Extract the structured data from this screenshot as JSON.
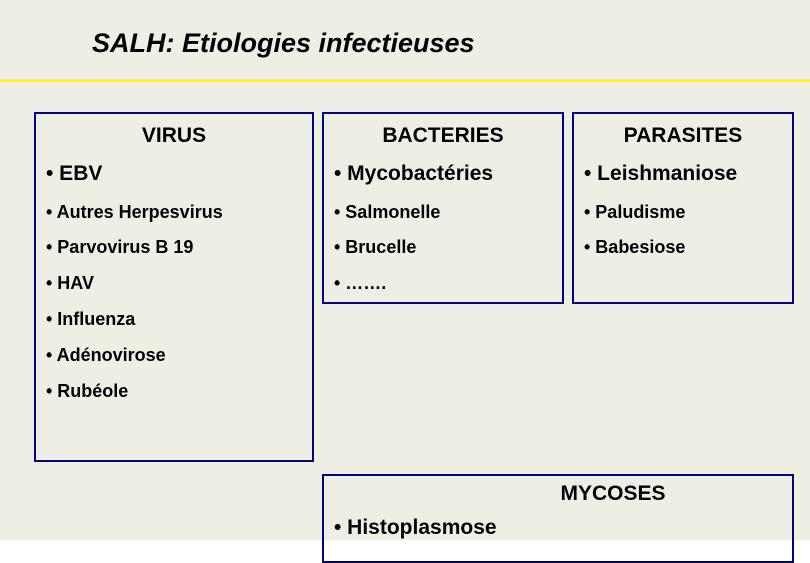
{
  "colors": {
    "background": "#eeeee4",
    "title_text": "#000000",
    "rule": "#ffff00",
    "box_border": "#000080",
    "text": "#000000"
  },
  "title": "SALH: Etiologies infectieuses",
  "columns": {
    "virus": {
      "header": "VIRUS",
      "items": [
        {
          "text": "• EBV",
          "size": "large"
        },
        {
          "text": "• Autres Herpesvirus",
          "size": "small"
        },
        {
          "text": "• Parvovirus B 19",
          "size": "small"
        },
        {
          "text": "• HAV",
          "size": "small"
        },
        {
          "text": "• Influenza",
          "size": "small"
        },
        {
          "text": "• Adénovirose",
          "size": "small"
        },
        {
          "text": "• Rubéole",
          "size": "small"
        }
      ]
    },
    "bacteries": {
      "header": "BACTERIES",
      "items": [
        {
          "text": "• Mycobactéries",
          "size": "large"
        },
        {
          "text": "• Salmonelle",
          "size": "small"
        },
        {
          "text": "• Brucelle",
          "size": "small"
        },
        {
          "text": "• …….",
          "size": "small"
        }
      ]
    },
    "parasites": {
      "header": "PARASITES",
      "items": [
        {
          "text": "• Leishmaniose",
          "size": "large"
        },
        {
          "text": "• Paludisme",
          "size": "small"
        },
        {
          "text": "• Babesiose",
          "size": "small"
        }
      ]
    },
    "mycoses": {
      "header": "MYCOSES",
      "items": [
        {
          "text": "• Histoplasmose",
          "size": "large"
        }
      ]
    }
  }
}
